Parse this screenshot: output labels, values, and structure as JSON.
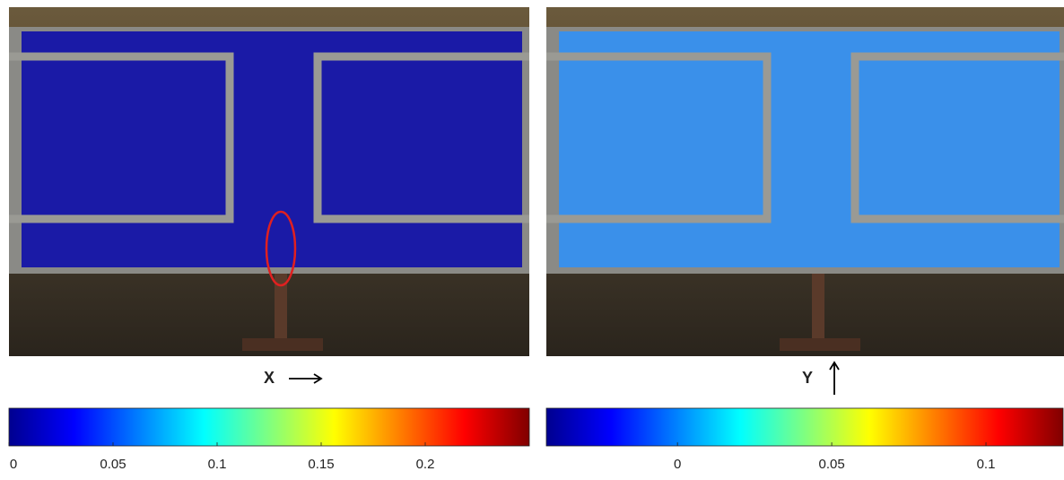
{
  "panels": [
    {
      "label": "X",
      "colorbar": {
        "lim": [
          0,
          0.25
        ],
        "ticks": [
          0,
          0.05,
          0.1,
          0.15,
          0.2
        ]
      }
    },
    {
      "label": "Y",
      "colorbar": {
        "lim": [
          -0.0425,
          0.125
        ],
        "ticks": [
          0,
          0.05,
          0.1
        ]
      }
    }
  ]
}
